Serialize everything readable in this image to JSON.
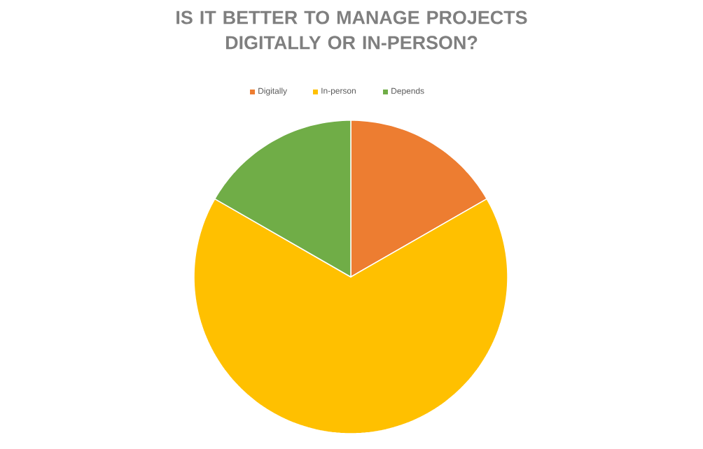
{
  "chart_data": {
    "type": "pie",
    "title": "IS IT BETTER TO MANAGE PROJECTS DIGITALLY OR IN-PERSON?",
    "categories": [
      "Digitally",
      "In-person",
      "Depends"
    ],
    "values": [
      16.7,
      66.6,
      16.7
    ],
    "colors": [
      "#ed7d31",
      "#ffc000",
      "#70ad47"
    ],
    "legend": "top"
  }
}
